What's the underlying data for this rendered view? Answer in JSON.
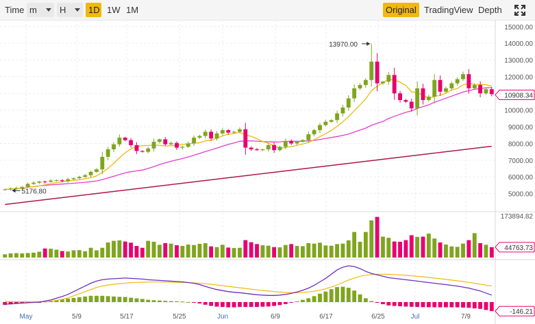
{
  "toolbar": {
    "time_label": "Time",
    "minute_select": "m",
    "hour_select": "H",
    "intervals": [
      "1D",
      "1W",
      "1M"
    ],
    "active_interval": "1D",
    "views": [
      "Original",
      "TradingView",
      "Depth"
    ],
    "active_view": "Original",
    "fullscreen_icon": "expand-icon"
  },
  "colors": {
    "up": "#7fa51e",
    "down": "#e8006e",
    "ma_fast": "#f0b90b",
    "ma_mid": "#e63cd0",
    "ma_slow": "#b0154e",
    "macd_line": "#6c2cc2",
    "signal_line": "#f0b90b",
    "accent": "#f0b90b"
  },
  "chart_data": [
    {
      "type": "candlestick",
      "panel": "price",
      "x_tick_labels": [
        "May",
        "5/9",
        "5/17",
        "5/25",
        "Jun",
        "6/9",
        "6/17",
        "6/25",
        "Jul",
        "7/9"
      ],
      "y_tick_labels": [
        "15000.00",
        "14000.00",
        "13000.00",
        "12000.00",
        "11000.00",
        "10000.00",
        "9000.00",
        "8000.00",
        "7000.00",
        "6000.00",
        "5000.00"
      ],
      "ylim": [
        4000,
        15400
      ],
      "current_price_label": "10908.34",
      "annotations": [
        {
          "text": "13970.00",
          "value": 13970,
          "marks": "high"
        },
        {
          "text": "5176.80",
          "value": 5176.8,
          "marks": "low"
        }
      ],
      "series": [
        {
          "name": "price",
          "close": [
            5250,
            5300,
            5330,
            5400,
            5580,
            5650,
            5720,
            5700,
            5780,
            5800,
            5750,
            5860,
            5920,
            6000,
            6100,
            6300,
            6450,
            7200,
            7650,
            7950,
            8350,
            8200,
            7900,
            7550,
            7500,
            7700,
            8100,
            8250,
            7950,
            8030,
            7750,
            7800,
            8000,
            8350,
            8450,
            8700,
            8300,
            8600,
            8800,
            8650,
            8700,
            8850,
            7750,
            7650,
            7600,
            7650,
            7900,
            7600,
            7800,
            8150,
            8000,
            8100,
            8200,
            8550,
            8800,
            9100,
            9300,
            9400,
            9800,
            10150,
            10700,
            11300,
            11500,
            11800,
            12900,
            11600,
            11700,
            12100,
            11000,
            10600,
            10500,
            10100,
            11300,
            10600,
            10800,
            11800,
            11100,
            11300,
            11600,
            11850,
            12150,
            11300,
            11500,
            11000,
            11250,
            10950
          ]
        }
      ]
    },
    {
      "type": "bar",
      "panel": "volume",
      "y_tick_labels": [
        "173894.82",
        "44763.73"
      ],
      "series": [
        {
          "name": "volume",
          "values": [
            14000,
            18000,
            19000,
            18000,
            19500,
            21000,
            25000,
            39000,
            38000,
            34000,
            28000,
            26000,
            31000,
            32000,
            27000,
            42000,
            31000,
            42000,
            65000,
            72000,
            74000,
            69000,
            64000,
            50000,
            42000,
            72000,
            68000,
            55000,
            62000,
            60000,
            53000,
            50000,
            56000,
            54000,
            59000,
            62000,
            48000,
            45000,
            55000,
            43000,
            41000,
            42000,
            75000,
            66000,
            58000,
            53000,
            51000,
            45000,
            44000,
            54000,
            58000,
            50000,
            49000,
            62000,
            60000,
            64000,
            52000,
            51000,
            58000,
            60000,
            74000,
            110000,
            68000,
            110000,
            160000,
            175000,
            90000,
            85000,
            69000,
            68000,
            75000,
            96000,
            89000,
            90000,
            103000,
            82000,
            65000,
            56000,
            48000,
            46000,
            60000,
            75000,
            105000,
            62000,
            55000,
            44763
          ]
        }
      ]
    },
    {
      "type": "line",
      "panel": "macd",
      "y_tick_labels": [
        "-146.21"
      ],
      "series": [
        {
          "name": "macd",
          "values": [
            -30,
            -25,
            -20,
            -15,
            -10,
            -5,
            0,
            15,
            30,
            55,
            80,
            110,
            150,
            190,
            230,
            270,
            300,
            320,
            330,
            335,
            340,
            345,
            340,
            335,
            330,
            320,
            315,
            310,
            305,
            300,
            295,
            290,
            280,
            270,
            250,
            225,
            200,
            180,
            165,
            150,
            140,
            135,
            125,
            115,
            105,
            100,
            95,
            95,
            100,
            110,
            125,
            145,
            170,
            200,
            240,
            290,
            340,
            400,
            460,
            500,
            520,
            510,
            480,
            440,
            410,
            390,
            370,
            350,
            340,
            330,
            320,
            310,
            300,
            290,
            280,
            270,
            260,
            250,
            240,
            230,
            215,
            200,
            180,
            160,
            130,
            100
          ]
        },
        {
          "name": "signal",
          "values": [
            10,
            8,
            6,
            5,
            4,
            4,
            5,
            8,
            15,
            25,
            40,
            60,
            90,
            120,
            150,
            180,
            210,
            230,
            245,
            255,
            265,
            272,
            278,
            282,
            285,
            287,
            288,
            288,
            287,
            286,
            284,
            282,
            279,
            275,
            270,
            263,
            255,
            245,
            235,
            225,
            215,
            205,
            195,
            185,
            175,
            166,
            158,
            150,
            143,
            138,
            135,
            135,
            138,
            145,
            155,
            170,
            190,
            215,
            245,
            280,
            315,
            345,
            370,
            385,
            395,
            400,
            400,
            398,
            395,
            390,
            384,
            377,
            370,
            362,
            353,
            344,
            335,
            325,
            315,
            305,
            294,
            282,
            270,
            257,
            243,
            230
          ]
        },
        {
          "name": "histogram",
          "values": [
            -40,
            -33,
            -26,
            -20,
            -14,
            -9,
            -5,
            7,
            15,
            30,
            40,
            50,
            60,
            70,
            80,
            90,
            90,
            90,
            85,
            80,
            75,
            73,
            62,
            53,
            45,
            33,
            27,
            22,
            18,
            14,
            11,
            8,
            1,
            -5,
            -20,
            -38,
            -55,
            -65,
            -70,
            -75,
            -75,
            -70,
            -70,
            -70,
            -70,
            -66,
            -63,
            -55,
            -43,
            -28,
            -10,
            10,
            32,
            55,
            85,
            120,
            150,
            185,
            215,
            220,
            205,
            165,
            110,
            55,
            15,
            -10,
            -30,
            -48,
            -55,
            -60,
            -64,
            -67,
            -70,
            -72,
            -73,
            -74,
            -75,
            -75,
            -75,
            -75,
            -79,
            -82,
            -90,
            -97,
            -113,
            -130
          ]
        }
      ]
    }
  ]
}
